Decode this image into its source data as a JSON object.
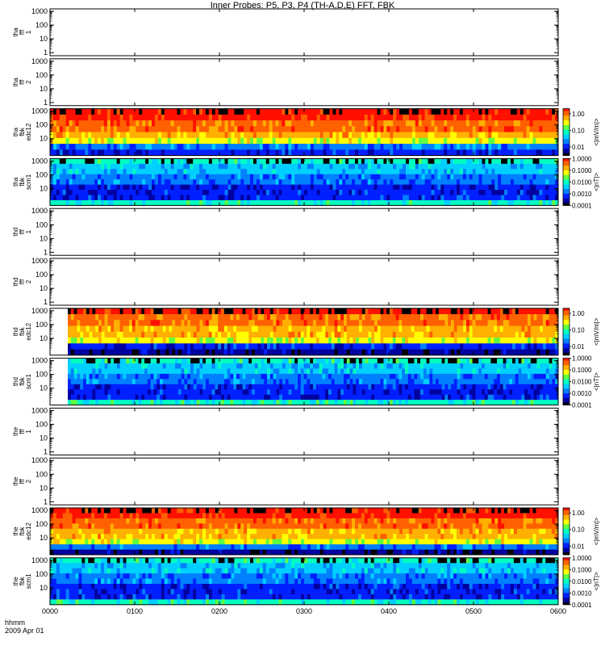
{
  "page": {
    "title": "Inner Probes: P5, P3, P4 (TH-A,D,E) FFT, FBK"
  },
  "x_axis": {
    "label_line1": "hhmm",
    "label_line2": "2009 Apr 01",
    "ticks": [
      "0000",
      "0100",
      "0200",
      "0300",
      "0400",
      "0500",
      "0600"
    ]
  },
  "colors": {
    "palette": [
      "#000000",
      "#0000a0",
      "#0020ff",
      "#0080ff",
      "#00d0ff",
      "#00ffc0",
      "#60ff40",
      "#ffff00",
      "#ffb000",
      "#ff6000",
      "#ff1000"
    ]
  },
  "chart_data": {
    "type": "heatmap",
    "title": "Inner Probes: P5, P3, P4 (TH-A,D,E) FFT, FBK",
    "x_range": [
      "0000",
      "0600"
    ],
    "date": "2009 Apr 01",
    "panels": [
      {
        "id": "tha-fff-1",
        "label": [
          "tha",
          "fff",
          "1"
        ],
        "yticks": [
          "1000",
          "100",
          "10",
          "1"
        ],
        "ylog": true,
        "has_data": false
      },
      {
        "id": "tha-fff-2",
        "label": [
          "tha",
          "fff",
          "2"
        ],
        "yticks": [
          "1000",
          "100",
          "10",
          "1"
        ],
        "ylog": true,
        "has_data": false
      },
      {
        "id": "tha-fbk-edc12",
        "label": [
          "tha",
          "fbk",
          "edc12"
        ],
        "yticks": [
          "1000",
          "100",
          "10"
        ],
        "ylog": true,
        "has_data": true,
        "colorbar": {
          "ticks": [
            "1.00",
            "0.10",
            "0.01"
          ],
          "unit": "<|mV/m|>",
          "log": true,
          "range": [
            0.003,
            2.0
          ]
        },
        "bands": [
          10,
          10,
          9,
          9,
          8,
          7,
          3,
          2
        ],
        "data_start": 0.0
      },
      {
        "id": "tha-fbk-scm1",
        "label": [
          "tha",
          "fbk",
          "scm1"
        ],
        "yticks": [
          "1000",
          "100",
          "10"
        ],
        "ylog": true,
        "has_data": true,
        "colorbar": {
          "ticks": [
            "1.0000",
            "0.1000",
            "0.0100",
            "0.0010",
            "0.0001"
          ],
          "unit": "<|nT|>",
          "log": true,
          "range": [
            0.0001,
            1.0
          ]
        },
        "bands": [
          5,
          4,
          4,
          3,
          3,
          2,
          2,
          2,
          5
        ],
        "data_start": 0.0
      },
      {
        "id": "thd-fff-1",
        "label": [
          "thd",
          "fff",
          "1"
        ],
        "yticks": [
          "1000",
          "100",
          "10",
          "1"
        ],
        "ylog": true,
        "has_data": false
      },
      {
        "id": "thd-fff-2",
        "label": [
          "thd",
          "fff",
          "2"
        ],
        "yticks": [
          "1000",
          "100",
          "10",
          "1"
        ],
        "ylog": true,
        "has_data": false
      },
      {
        "id": "thd-fbk-edc12",
        "label": [
          "thd",
          "fbk",
          "edc12"
        ],
        "yticks": [
          "1000",
          "100",
          "10"
        ],
        "ylog": true,
        "has_data": true,
        "colorbar": {
          "ticks": [
            "1.00",
            "0.10",
            "0.01"
          ],
          "unit": "<|mV/m|>",
          "log": true,
          "range": [
            0.003,
            2.0
          ]
        },
        "bands": [
          10,
          9,
          9,
          8,
          8,
          7,
          2,
          1
        ],
        "data_start": 0.035
      },
      {
        "id": "thd-fbk-scm1",
        "label": [
          "thd",
          "fbk",
          "scm1"
        ],
        "yticks": [
          "1000",
          "100",
          "10"
        ],
        "ylog": true,
        "has_data": true,
        "colorbar": {
          "ticks": [
            "1.0000",
            "0.1000",
            "0.0100",
            "0.0010",
            "0.0001"
          ],
          "unit": "<|nT|>",
          "log": true,
          "range": [
            0.0001,
            1.0
          ]
        },
        "bands": [
          5,
          4,
          4,
          3,
          3,
          2,
          2,
          2,
          5
        ],
        "data_start": 0.035
      },
      {
        "id": "the-fff-1",
        "label": [
          "the",
          "fff",
          "1"
        ],
        "yticks": [
          "1000",
          "100",
          "10",
          "1"
        ],
        "ylog": true,
        "has_data": false
      },
      {
        "id": "the-fff-2",
        "label": [
          "the",
          "fff",
          "2"
        ],
        "yticks": [
          "1000",
          "100",
          "10",
          "1"
        ],
        "ylog": true,
        "has_data": false
      },
      {
        "id": "the-fbk-edc12",
        "label": [
          "the",
          "fbk",
          "edc12"
        ],
        "yticks": [
          "1000",
          "100",
          "10"
        ],
        "ylog": true,
        "has_data": true,
        "colorbar": {
          "ticks": [
            "1.00",
            "0.10",
            "0.01"
          ],
          "unit": "<|mV/m|>",
          "log": true,
          "range": [
            0.003,
            2.0
          ]
        },
        "bands": [
          10,
          10,
          9,
          9,
          8,
          8,
          7,
          3,
          1
        ],
        "data_start": 0.0
      },
      {
        "id": "the-fbk-scm1",
        "label": [
          "the",
          "fbk",
          "scm1"
        ],
        "yticks": [
          "1000",
          "100",
          "10"
        ],
        "ylog": true,
        "has_data": true,
        "colorbar": {
          "ticks": [
            "1.0000",
            "0.1000",
            "0.0100",
            "0.0010",
            "0.0001"
          ],
          "unit": "<|nT|>",
          "log": true,
          "range": [
            0.0001,
            1.0
          ]
        },
        "bands": [
          5,
          4,
          4,
          3,
          3,
          2,
          2,
          2,
          5
        ],
        "data_start": 0.0
      }
    ]
  }
}
